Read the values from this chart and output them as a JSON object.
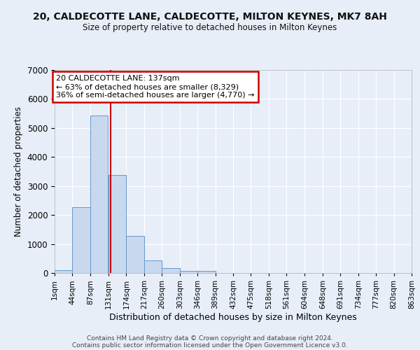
{
  "title_line1": "20, CALDECOTTE LANE, CALDECOTTE, MILTON KEYNES, MK7 8AH",
  "title_line2": "Size of property relative to detached houses in Milton Keynes",
  "xlabel": "Distribution of detached houses by size in Milton Keynes",
  "ylabel": "Number of detached properties",
  "footer_line1": "Contains HM Land Registry data © Crown copyright and database right 2024.",
  "footer_line2": "Contains public sector information licensed under the Open Government Licence v3.0.",
  "annotation_line1": "20 CALDECOTTE LANE: 137sqm",
  "annotation_line2": "← 63% of detached houses are smaller (8,329)",
  "annotation_line3": "36% of semi-detached houses are larger (4,770) →",
  "property_size": 137,
  "bin_edges": [
    1,
    44,
    87,
    131,
    174,
    217,
    260,
    303,
    346,
    389,
    432,
    475,
    518,
    561,
    604,
    648,
    691,
    734,
    777,
    820,
    863
  ],
  "bar_heights": [
    90,
    2270,
    5430,
    3380,
    1290,
    430,
    160,
    75,
    75,
    0,
    0,
    0,
    0,
    0,
    0,
    0,
    0,
    0,
    0,
    0
  ],
  "bar_color": "#c8d8ee",
  "bar_edge_color": "#6699cc",
  "vline_color": "#cc0000",
  "vline_x": 137,
  "ylim": [
    0,
    7000
  ],
  "yticks": [
    0,
    1000,
    2000,
    3000,
    4000,
    5000,
    6000,
    7000
  ],
  "background_color": "#e8eef8",
  "grid_color": "#ffffff",
  "annotation_box_edge_color": "#cc0000",
  "annotation_box_face_color": "#ffffff"
}
